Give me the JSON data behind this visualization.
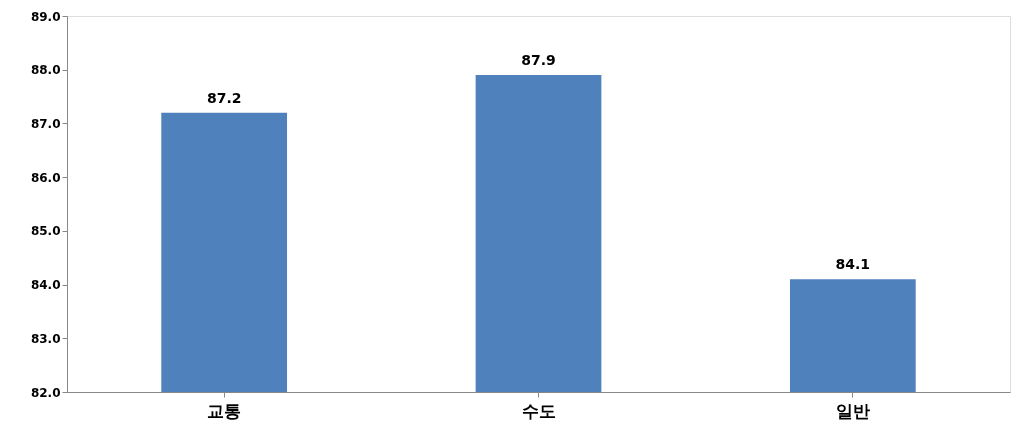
{
  "chart_data": {
    "type": "bar",
    "categories": [
      "교통",
      "수도",
      "일반"
    ],
    "values": [
      87.2,
      87.9,
      84.1
    ],
    "color": "#4f81bd",
    "ylim": [
      82,
      89
    ],
    "yticks": [
      {
        "value": 82,
        "label": "82.0"
      },
      {
        "value": 83,
        "label": "83.0"
      },
      {
        "value": 84,
        "label": "84.0"
      },
      {
        "value": 85,
        "label": "85.0"
      },
      {
        "value": 86,
        "label": "86.0"
      },
      {
        "value": 87,
        "label": "87.0"
      },
      {
        "value": 88,
        "label": "88.0"
      },
      {
        "value": 89,
        "label": "89.0"
      }
    ],
    "data_labels": true,
    "grid": false
  }
}
